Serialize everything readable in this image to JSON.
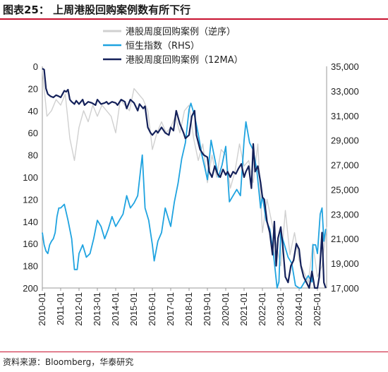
{
  "title": "图表25：  上周港股回购案例数有所下行",
  "source": "资料来源：Bloomberg，华泰研究",
  "colors": {
    "weekly": "#d0d0d0",
    "hsi": "#1fa3e0",
    "ma12": "#14215a",
    "title_rule": "#c8102e"
  },
  "chart_data": {
    "type": "line",
    "x_ticks": [
      "2010-01",
      "2011-01",
      "2012-01",
      "2013-01",
      "2014-01",
      "2015-01",
      "2016-01",
      "2017-01",
      "2018-01",
      "2019-01",
      "2020-01",
      "2021-01",
      "2022-01",
      "2023-01",
      "2024-01",
      "2025-01"
    ],
    "x_range": [
      2010.0,
      2025.5
    ],
    "y_left": {
      "ticks": [
        "0",
        "20",
        "40",
        "60",
        "80",
        "100",
        "120",
        "140",
        "160",
        "180",
        "200"
      ],
      "range": [
        0,
        200
      ],
      "inverted": true
    },
    "y_right": {
      "ticks": [
        "35,000",
        "33,000",
        "31,000",
        "29,000",
        "27,000",
        "25,000",
        "23,000",
        "21,000",
        "19,000",
        "17,000"
      ],
      "range": [
        17000,
        35000
      ]
    },
    "legend_position": "top-center",
    "series": [
      {
        "name": "港股周度回购案例（逆序）",
        "axis": "left",
        "color": "#d0d0d0",
        "x": [
          2010.0,
          2010.25,
          2010.5,
          2010.75,
          2011.0,
          2011.25,
          2011.5,
          2011.75,
          2012.0,
          2012.25,
          2012.5,
          2012.75,
          2013.0,
          2013.25,
          2013.5,
          2013.75,
          2014.0,
          2014.25,
          2014.5,
          2014.75,
          2015.0,
          2015.25,
          2015.5,
          2015.75,
          2016.0,
          2016.25,
          2016.5,
          2016.75,
          2017.0,
          2017.25,
          2017.5,
          2017.75,
          2018.0,
          2018.25,
          2018.5,
          2018.75,
          2019.0,
          2019.25,
          2019.5,
          2019.75,
          2020.0,
          2020.25,
          2020.5,
          2020.75,
          2021.0,
          2021.25,
          2021.5,
          2021.75,
          2022.0,
          2022.25,
          2022.5,
          2022.75,
          2023.0,
          2023.25,
          2023.5,
          2023.75,
          2024.0,
          2024.25,
          2024.5,
          2024.75,
          2025.0,
          2025.25,
          2025.5
        ],
        "values": [
          3,
          45,
          40,
          30,
          35,
          25,
          65,
          85,
          55,
          40,
          50,
          35,
          45,
          35,
          40,
          45,
          60,
          30,
          35,
          40,
          20,
          25,
          30,
          40,
          75,
          60,
          50,
          60,
          55,
          45,
          60,
          40,
          35,
          65,
          85,
          70,
          105,
          80,
          100,
          75,
          80,
          110,
          95,
          70,
          90,
          85,
          105,
          70,
          150,
          120,
          140,
          160,
          180,
          130,
          170,
          150,
          175,
          185,
          195,
          160,
          190,
          180,
          145
        ]
      },
      {
        "name": "恒生指数（RHS）",
        "axis": "right",
        "color": "#1fa3e0",
        "x": [
          2010.0,
          2010.1,
          2010.2,
          2010.3,
          2010.4,
          2010.5,
          2010.6,
          2010.7,
          2010.8,
          2010.9,
          2011.0,
          2011.2,
          2011.4,
          2011.6,
          2011.75,
          2011.9,
          2012.0,
          2012.2,
          2012.4,
          2012.6,
          2012.8,
          2013.0,
          2013.2,
          2013.4,
          2013.6,
          2013.8,
          2014.0,
          2014.2,
          2014.4,
          2014.6,
          2014.8,
          2015.0,
          2015.2,
          2015.35,
          2015.45,
          2015.6,
          2015.8,
          2016.0,
          2016.1,
          2016.3,
          2016.5,
          2016.7,
          2016.9,
          2017.0,
          2017.2,
          2017.4,
          2017.6,
          2017.8,
          2018.0,
          2018.1,
          2018.3,
          2018.5,
          2018.7,
          2018.9,
          2019.0,
          2019.2,
          2019.4,
          2019.6,
          2019.8,
          2020.0,
          2020.2,
          2020.4,
          2020.6,
          2020.8,
          2021.0,
          2021.1,
          2021.3,
          2021.5,
          2021.7,
          2021.9,
          2022.0,
          2022.2,
          2022.4,
          2022.6,
          2022.8,
          2022.9,
          2023.0,
          2023.2,
          2023.4,
          2023.6,
          2023.8,
          2024.0,
          2024.1,
          2024.3,
          2024.5,
          2024.7,
          2024.75,
          2024.9,
          2025.0,
          2025.15,
          2025.25,
          2025.35,
          2025.45
        ],
        "values": [
          21500,
          20500,
          20000,
          19800,
          20500,
          20800,
          21000,
          21500,
          22800,
          23500,
          23500,
          23800,
          22500,
          21000,
          18500,
          18500,
          19800,
          20500,
          19500,
          19800,
          21000,
          22500,
          22000,
          21000,
          21800,
          22800,
          22000,
          22500,
          23000,
          24500,
          23500,
          23900,
          24500,
          26500,
          27800,
          23500,
          22500,
          20500,
          19200,
          20800,
          21500,
          23500,
          22500,
          22000,
          24000,
          25500,
          27500,
          28800,
          31500,
          32000,
          31000,
          29500,
          27800,
          26500,
          25800,
          29000,
          27500,
          26000,
          27000,
          28500,
          24000,
          24500,
          25000,
          24500,
          29000,
          30500,
          28800,
          28200,
          26500,
          23500,
          24500,
          22500,
          21800,
          19800,
          16200,
          17500,
          21500,
          20500,
          19500,
          19000,
          17200,
          16600,
          16000,
          17500,
          18000,
          17500,
          20500,
          20500,
          19800,
          23000,
          23500,
          20800,
          21800
        ]
      },
      {
        "name": "港股周度回购案例（12MA）",
        "axis": "left",
        "color": "#14215a",
        "x": [
          2010.0,
          2010.1,
          2010.2,
          2010.3,
          2010.45,
          2010.6,
          2010.75,
          2010.9,
          2011.0,
          2011.1,
          2011.2,
          2011.3,
          2011.4,
          2011.5,
          2011.6,
          2011.75,
          2011.85,
          2012.0,
          2012.2,
          2012.3,
          2012.5,
          2012.7,
          2012.9,
          2013.0,
          2013.2,
          2013.4,
          2013.5,
          2013.6,
          2013.8,
          2014.0,
          2014.1,
          2014.3,
          2014.5,
          2014.6,
          2014.8,
          2015.0,
          2015.2,
          2015.3,
          2015.5,
          2015.6,
          2015.75,
          2015.9,
          2016.0,
          2016.2,
          2016.3,
          2016.5,
          2016.7,
          2016.9,
          2017.0,
          2017.15,
          2017.3,
          2017.5,
          2017.7,
          2017.8,
          2018.0,
          2018.15,
          2018.3,
          2018.4,
          2018.6,
          2018.8,
          2019.0,
          2019.1,
          2019.25,
          2019.4,
          2019.55,
          2019.7,
          2019.85,
          2020.0,
          2020.1,
          2020.25,
          2020.4,
          2020.55,
          2020.7,
          2020.85,
          2021.0,
          2021.1,
          2021.25,
          2021.4,
          2021.5,
          2021.6,
          2021.75,
          2021.9,
          2022.0,
          2022.1,
          2022.25,
          2022.4,
          2022.55,
          2022.65,
          2022.75,
          2022.85,
          2023.0,
          2023.1,
          2023.25,
          2023.4,
          2023.55,
          2023.7,
          2023.85,
          2024.0,
          2024.1,
          2024.25,
          2024.4,
          2024.55,
          2024.7,
          2024.85,
          2025.0,
          2025.1,
          2025.25,
          2025.35,
          2025.45
        ],
        "values": [
          2,
          3,
          20,
          25,
          27,
          28,
          26,
          27,
          28,
          25,
          22,
          23,
          21,
          30,
          32,
          34,
          31,
          34,
          30,
          35,
          32,
          33,
          35,
          30,
          34,
          33,
          32,
          34,
          32,
          33,
          35,
          30,
          32,
          38,
          30,
          33,
          40,
          34,
          38,
          36,
          55,
          60,
          62,
          58,
          60,
          55,
          60,
          62,
          55,
          58,
          40,
          52,
          60,
          65,
          62,
          45,
          40,
          62,
          75,
          80,
          82,
          95,
          100,
          90,
          97,
          100,
          93,
          98,
          95,
          100,
          95,
          97,
          92,
          88,
          100,
          95,
          90,
          110,
          70,
          95,
          90,
          105,
          118,
          120,
          140,
          150,
          170,
          140,
          180,
          155,
          145,
          160,
          190,
          195,
          180,
          175,
          160,
          165,
          180,
          190,
          195,
          200,
          185,
          200,
          200,
          190,
          150,
          195,
          200
        ]
      }
    ]
  }
}
